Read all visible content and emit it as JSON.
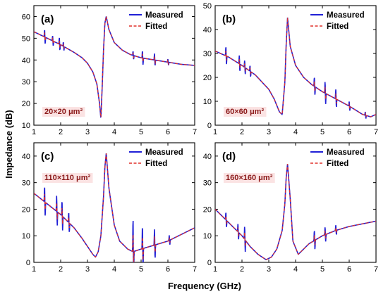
{
  "figure": {
    "ylabel": "Impedance (dB)",
    "xlabel": "Frequency (GHz)",
    "legend": {
      "measured": "Measured",
      "fitted": "Fitted"
    },
    "colors": {
      "measured": "#1f1fd6",
      "fitted": "#e0302a",
      "size_label_bg": "#fbe3e3",
      "size_label_text": "#8b1a1a"
    }
  },
  "chart_data": [
    {
      "type": "line",
      "panel": "(a)",
      "size_label": "20×20 μm²",
      "xlim": [
        1,
        7
      ],
      "ylim": [
        10,
        65
      ],
      "xticks": [
        1,
        2,
        3,
        4,
        5,
        6,
        7
      ],
      "yticks": [
        10,
        20,
        30,
        40,
        50,
        60
      ],
      "legend_position": "top-right",
      "base": {
        "x": [
          1.0,
          1.5,
          2.0,
          2.5,
          2.8,
          3.0,
          3.2,
          3.35,
          3.45,
          3.5,
          3.55,
          3.6,
          3.65,
          3.7,
          3.8,
          4.0,
          4.3,
          4.6,
          5.0,
          5.5,
          6.0,
          6.5,
          7.0
        ],
        "y": [
          53,
          50,
          47,
          43.5,
          41,
          38.5,
          34.5,
          29,
          20,
          13,
          28,
          45,
          57,
          60,
          54,
          48,
          44.5,
          42.5,
          41,
          40,
          39,
          38,
          37.5
        ]
      },
      "spikes": [
        {
          "x": 1.4,
          "h": 3.5
        },
        {
          "x": 1.7,
          "h": 2.5
        },
        {
          "x": 1.95,
          "h": 3
        },
        {
          "x": 2.1,
          "h": 2
        },
        {
          "x": 4.7,
          "h": 2
        },
        {
          "x": 5.05,
          "h": 3.5
        },
        {
          "x": 5.5,
          "h": 3
        },
        {
          "x": 6.0,
          "h": 1.5
        }
      ]
    },
    {
      "type": "line",
      "panel": "(b)",
      "size_label": "60×60 μm²",
      "xlim": [
        1,
        7
      ],
      "ylim": [
        0,
        50
      ],
      "xticks": [
        1,
        2,
        3,
        4,
        5,
        6,
        7
      ],
      "yticks": [
        0,
        10,
        20,
        30,
        40,
        50
      ],
      "legend_position": "top-right",
      "base": {
        "x": [
          1.0,
          1.5,
          2.0,
          2.5,
          3.0,
          3.2,
          3.4,
          3.5,
          3.6,
          3.65,
          3.7,
          3.8,
          4.0,
          4.3,
          4.6,
          5.0,
          5.5,
          6.0,
          6.5,
          6.8,
          7.0
        ],
        "y": [
          31,
          28.5,
          25,
          21,
          15,
          11,
          5.5,
          4.5,
          18,
          34,
          45,
          33,
          25,
          20,
          17,
          14,
          11,
          8,
          4.5,
          3.5,
          4.5
        ]
      },
      "spikes": [
        {
          "x": 1.4,
          "h": 4
        },
        {
          "x": 1.9,
          "h": 3.5
        },
        {
          "x": 2.1,
          "h": 3
        },
        {
          "x": 2.3,
          "h": 2.5
        },
        {
          "x": 4.7,
          "h": 4
        },
        {
          "x": 5.1,
          "h": 5
        },
        {
          "x": 5.5,
          "h": 4
        },
        {
          "x": 6.0,
          "h": 2
        },
        {
          "x": 6.6,
          "h": 1.5
        }
      ]
    },
    {
      "type": "line",
      "panel": "(c)",
      "size_label": "110×110 μm²",
      "xlim": [
        1,
        7
      ],
      "ylim": [
        0,
        45
      ],
      "xticks": [
        1,
        2,
        3,
        4,
        5,
        6,
        7
      ],
      "yticks": [
        0,
        10,
        20,
        30,
        40
      ],
      "legend_position": "top-right",
      "base": {
        "x": [
          1.0,
          1.5,
          2.0,
          2.5,
          2.8,
          3.0,
          3.2,
          3.3,
          3.4,
          3.5,
          3.6,
          3.65,
          3.7,
          3.8,
          4.0,
          4.2,
          4.5,
          4.7,
          5.0,
          5.5,
          6.0,
          6.5,
          7.0
        ],
        "y": [
          26,
          22,
          18,
          13,
          9,
          6,
          3,
          2,
          4,
          10,
          25,
          36,
          41,
          28,
          14,
          8,
          5,
          4,
          5,
          6.5,
          8,
          10.5,
          13
        ]
      },
      "spikes": [
        {
          "x": 1.4,
          "h": 6
        },
        {
          "x": 1.85,
          "h": 6
        },
        {
          "x": 2.05,
          "h": 6
        },
        {
          "x": 2.3,
          "h": 4
        },
        {
          "x": 4.7,
          "h": 13
        },
        {
          "x": 5.05,
          "h": 9
        },
        {
          "x": 5.5,
          "h": 6
        },
        {
          "x": 6.05,
          "h": 2
        }
      ]
    },
    {
      "type": "line",
      "panel": "(d)",
      "size_label": "160×160 μm²",
      "xlim": [
        1,
        7
      ],
      "ylim": [
        0,
        45
      ],
      "xticks": [
        1,
        2,
        3,
        4,
        5,
        6,
        7
      ],
      "yticks": [
        0,
        10,
        20,
        30,
        40
      ],
      "legend_position": "top-right",
      "base": {
        "x": [
          1.0,
          1.5,
          2.0,
          2.3,
          2.6,
          2.9,
          3.1,
          3.3,
          3.5,
          3.6,
          3.65,
          3.7,
          3.8,
          3.9,
          4.1,
          4.5,
          5.0,
          5.5,
          6.0,
          6.5,
          7.0
        ],
        "y": [
          20,
          15,
          10,
          6,
          3,
          1,
          2,
          5,
          12,
          22,
          32,
          37,
          24,
          8,
          3,
          7,
          10,
          12,
          13.5,
          14.5,
          15.5
        ]
      },
      "spikes": [
        {
          "x": 1.4,
          "h": 3
        },
        {
          "x": 1.85,
          "h": 3
        },
        {
          "x": 2.1,
          "h": 5
        },
        {
          "x": 4.7,
          "h": 4
        },
        {
          "x": 5.1,
          "h": 3
        },
        {
          "x": 5.5,
          "h": 2
        }
      ]
    }
  ]
}
